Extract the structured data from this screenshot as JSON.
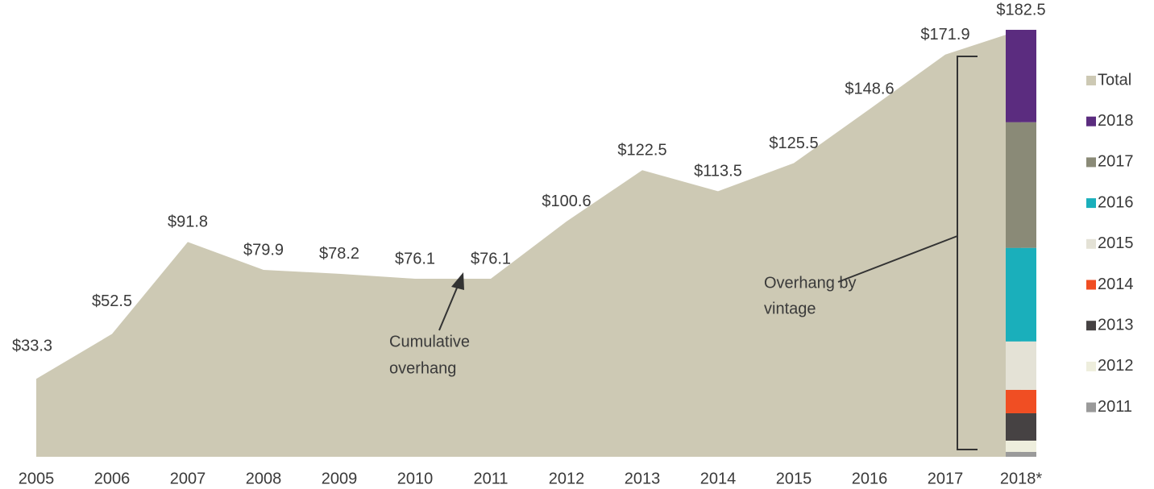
{
  "chart_data": {
    "type": "area",
    "categories": [
      "2005",
      "2006",
      "2007",
      "2008",
      "2009",
      "2010",
      "2011",
      "2012",
      "2013",
      "2014",
      "2015",
      "2016",
      "2017",
      "2018*"
    ],
    "ylim": [
      0,
      190
    ],
    "series": [
      {
        "name": "Total",
        "type": "area",
        "color": "#cdc9b4",
        "values": [
          33.3,
          52.5,
          91.8,
          79.9,
          78.2,
          76.1,
          76.1,
          100.6,
          122.5,
          113.5,
          125.5,
          148.6,
          171.9,
          182.5
        ],
        "value_labels": [
          "$33.3",
          "$52.5",
          "$91.8",
          "$79.9",
          "$78.2",
          "$76.1",
          "$76.1",
          "$100.6",
          "$122.5",
          "$113.5",
          "$125.5",
          "$148.6",
          "$171.9",
          "$182.5"
        ]
      },
      {
        "name": "2018",
        "type": "bar",
        "color": "#5b2c7f",
        "values": [
          null,
          null,
          null,
          null,
          null,
          null,
          null,
          null,
          null,
          null,
          null,
          null,
          null,
          39.5
        ]
      },
      {
        "name": "2017",
        "type": "bar",
        "color": "#8a8a77",
        "values": [
          null,
          null,
          null,
          null,
          null,
          null,
          null,
          null,
          null,
          null,
          null,
          null,
          null,
          53.7
        ]
      },
      {
        "name": "2016",
        "type": "bar",
        "color": "#1aafbb",
        "values": [
          null,
          null,
          null,
          null,
          null,
          null,
          null,
          null,
          null,
          null,
          null,
          null,
          null,
          40
        ]
      },
      {
        "name": "2015",
        "type": "bar",
        "color": "#e4e2d6",
        "values": [
          null,
          null,
          null,
          null,
          null,
          null,
          null,
          null,
          null,
          null,
          null,
          null,
          null,
          20.7
        ]
      },
      {
        "name": "2014",
        "type": "bar",
        "color": "#f04e23",
        "values": [
          null,
          null,
          null,
          null,
          null,
          null,
          null,
          null,
          null,
          null,
          null,
          null,
          null,
          10
        ]
      },
      {
        "name": "2013",
        "type": "bar",
        "color": "#464243",
        "values": [
          null,
          null,
          null,
          null,
          null,
          null,
          null,
          null,
          null,
          null,
          null,
          null,
          null,
          11.7
        ]
      },
      {
        "name": "2012",
        "type": "bar",
        "color": "#eeeedd",
        "values": [
          null,
          null,
          null,
          null,
          null,
          null,
          null,
          null,
          null,
          null,
          null,
          null,
          null,
          4.8
        ]
      },
      {
        "name": "2011",
        "type": "bar",
        "color": "#9a9a9a",
        "values": [
          null,
          null,
          null,
          null,
          null,
          null,
          null,
          null,
          null,
          null,
          null,
          null,
          null,
          2.1
        ]
      }
    ],
    "annotations": [
      {
        "lines": [
          "Cumulative",
          "overhang"
        ]
      },
      {
        "lines": [
          "Overhang by",
          "vintage"
        ]
      }
    ]
  }
}
